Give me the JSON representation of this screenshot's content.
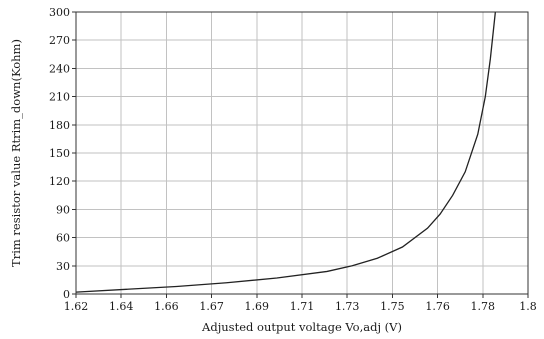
{
  "chart_data": {
    "type": "line",
    "title": "",
    "xlabel": "Adjusted output voltage Vo,adj (V)",
    "ylabel": "Trim resistor value Rtrim_down(Kohm)",
    "xlim": [
      1.62,
      1.8
    ],
    "ylim": [
      0,
      300
    ],
    "x_ticks": [
      "1.62",
      "1.64",
      "1.66",
      "1.67",
      "1.69",
      "1.71",
      "1.73",
      "1.75",
      "1.76",
      "1.78",
      "1.8"
    ],
    "y_ticks": [
      0,
      30,
      60,
      90,
      120,
      150,
      180,
      210,
      240,
      270,
      300
    ],
    "grid": true,
    "series": [
      {
        "x": [
          1.62,
          1.64,
          1.66,
          1.68,
          1.7,
          1.72,
          1.73,
          1.74,
          1.75,
          1.76,
          1.765,
          1.77,
          1.775,
          1.78,
          1.783,
          1.785,
          1.787
        ],
        "y": [
          2,
          5,
          8,
          12,
          17,
          24,
          30,
          38,
          50,
          70,
          85,
          105,
          130,
          170,
          210,
          250,
          300
        ]
      }
    ],
    "colors": {
      "line": "#222222",
      "grid": "#c2c2c2",
      "background": "#ffffff"
    }
  }
}
